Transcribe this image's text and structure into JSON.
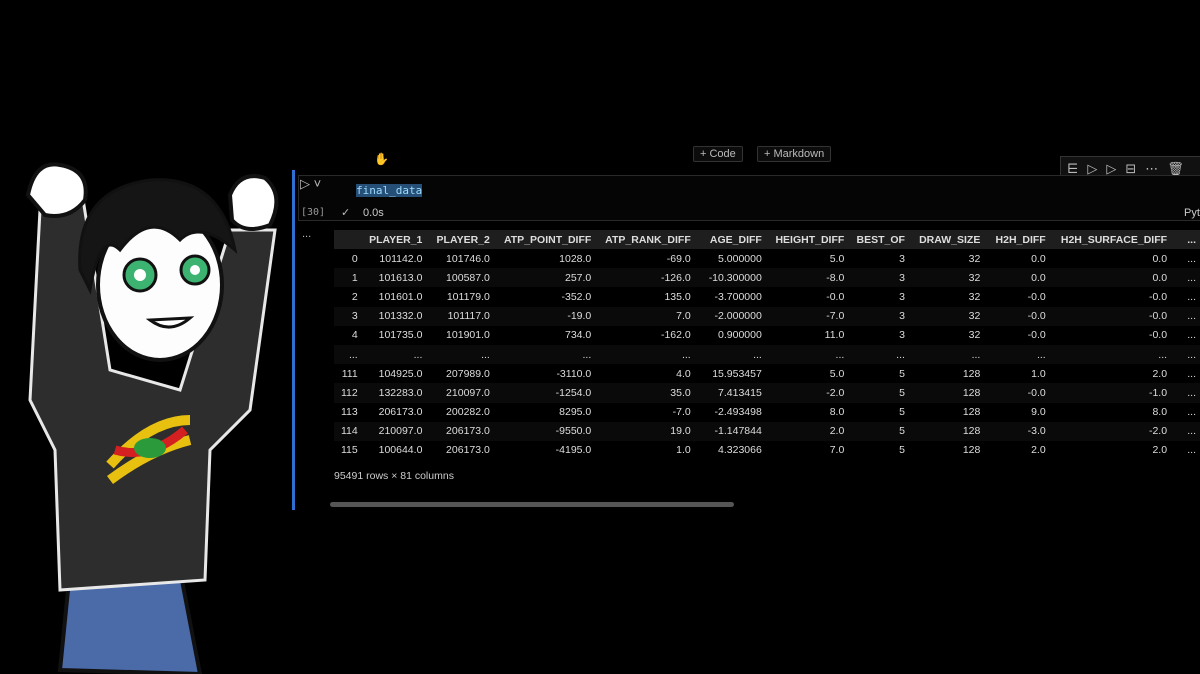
{
  "toolbar": {
    "add_code": "Code",
    "add_markdown": "Markdown"
  },
  "cell": {
    "code": "final_data",
    "execution_count": "[30]",
    "duration": "0.0s",
    "language": "Pyt",
    "output_menu": "..."
  },
  "table": {
    "columns": [
      "PLAYER_1",
      "PLAYER_2",
      "ATP_POINT_DIFF",
      "ATP_RANK_DIFF",
      "AGE_DIFF",
      "HEIGHT_DIFF",
      "BEST_OF",
      "DRAW_SIZE",
      "H2H_DIFF",
      "H2H_SURFACE_DIFF",
      "..."
    ],
    "rows": [
      [
        "0",
        "101142.0",
        "101746.0",
        "1028.0",
        "-69.0",
        "5.000000",
        "5.0",
        "3",
        "32",
        "0.0",
        "0.0",
        "..."
      ],
      [
        "1",
        "101613.0",
        "100587.0",
        "257.0",
        "-126.0",
        "-10.300000",
        "-8.0",
        "3",
        "32",
        "0.0",
        "0.0",
        "..."
      ],
      [
        "2",
        "101601.0",
        "101179.0",
        "-352.0",
        "135.0",
        "-3.700000",
        "-0.0",
        "3",
        "32",
        "-0.0",
        "-0.0",
        "..."
      ],
      [
        "3",
        "101332.0",
        "101117.0",
        "-19.0",
        "7.0",
        "-2.000000",
        "-7.0",
        "3",
        "32",
        "-0.0",
        "-0.0",
        "..."
      ],
      [
        "4",
        "101735.0",
        "101901.0",
        "734.0",
        "-162.0",
        "0.900000",
        "11.0",
        "3",
        "32",
        "-0.0",
        "-0.0",
        "..."
      ],
      [
        "...",
        "...",
        "...",
        "...",
        "...",
        "...",
        "...",
        "...",
        "...",
        "...",
        "...",
        "..."
      ],
      [
        "111",
        "104925.0",
        "207989.0",
        "-3110.0",
        "4.0",
        "15.953457",
        "5.0",
        "5",
        "128",
        "1.0",
        "2.0",
        "..."
      ],
      [
        "112",
        "132283.0",
        "210097.0",
        "-1254.0",
        "35.0",
        "7.413415",
        "-2.0",
        "5",
        "128",
        "-0.0",
        "-1.0",
        "..."
      ],
      [
        "113",
        "206173.0",
        "200282.0",
        "8295.0",
        "-7.0",
        "-2.493498",
        "8.0",
        "5",
        "128",
        "9.0",
        "8.0",
        "..."
      ],
      [
        "114",
        "210097.0",
        "206173.0",
        "-9550.0",
        "19.0",
        "-1.147844",
        "2.0",
        "5",
        "128",
        "-3.0",
        "-2.0",
        "..."
      ],
      [
        "115",
        "100644.0",
        "206173.0",
        "-4195.0",
        "1.0",
        "4.323066",
        "7.0",
        "5",
        "128",
        "2.0",
        "2.0",
        "..."
      ]
    ],
    "shape": "95491 rows × 81 columns"
  }
}
